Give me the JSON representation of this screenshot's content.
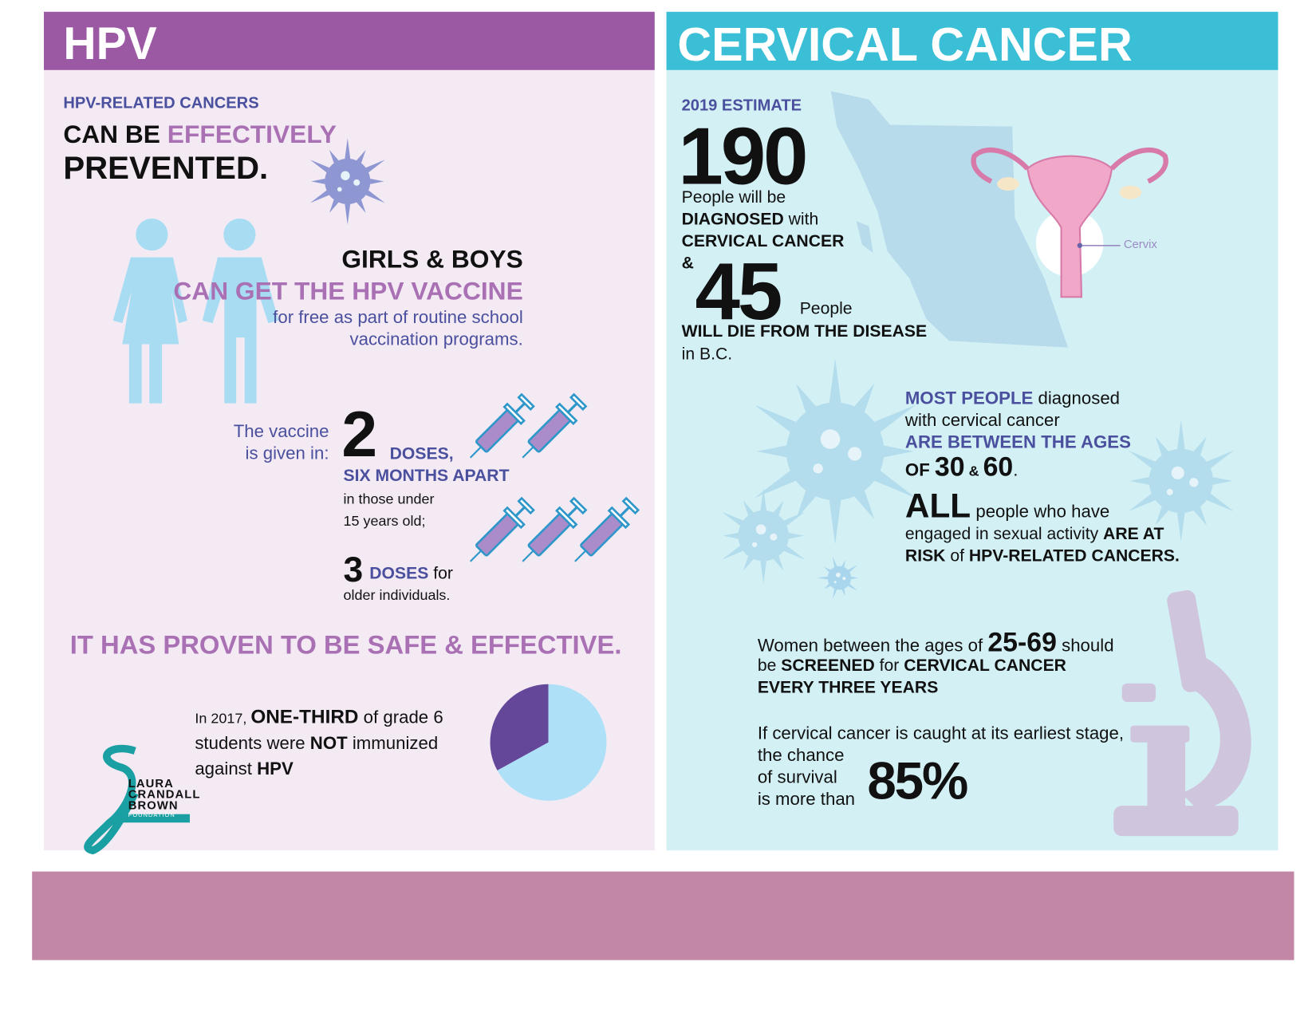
{
  "hpv": {
    "header": "HPV",
    "kicker": "HPV-RELATED CANCERS",
    "headline": [
      "CAN BE ",
      "EFFECTIVELY",
      "PREVENTED."
    ],
    "vaccine": [
      "GIRLS & BOYS",
      "CAN GET THE HPV VACCINE",
      "for free as part of routine school",
      "vaccination programs."
    ],
    "doses": {
      "intro": [
        "The vaccine",
        "is given in:"
      ],
      "two": {
        "count": "2",
        "unit": " DOSES,",
        "interval": "SIX MONTHS APART",
        "who": [
          "in those under",
          "15 years old;"
        ]
      },
      "three": {
        "count": "3",
        "unit": "DOSES",
        "for": " for",
        "who": "older individuals."
      }
    },
    "safe": "IT HAS PROVEN TO BE SAFE & EFFECTIVE.",
    "immunization": [
      "In 2017, ",
      "ONE-THIRD",
      " of grade 6",
      "students were ",
      "NOT",
      " immunized",
      "against ",
      "HPV"
    ],
    "pie": {
      "values": [
        33,
        67
      ],
      "colors": [
        "#65479a",
        "#aee0f8"
      ]
    },
    "logo": [
      "LAURA",
      "CRANDALL",
      "BROWN",
      "FOUNDATION"
    ]
  },
  "cervical": {
    "header": "CERVICAL CANCER",
    "estimate": {
      "label": "2019 ESTIMATE",
      "diagnosed": "190",
      "deaths": "45",
      "text": [
        "People will be",
        "DIAGNOSED",
        " with",
        "CERVICAL CANCER",
        "&",
        "People",
        "WILL DIE FROM THE DISEASE",
        "in B.C."
      ]
    },
    "cervix_label": "Cervix",
    "ages": [
      "MOST PEOPLE",
      " diagnosed",
      "with cervical cancer",
      "ARE BETWEEN THE AGES",
      "OF ",
      "30",
      " & ",
      "60",
      "."
    ],
    "risk": [
      "ALL",
      " people who have",
      "engaged in sexual activity ",
      "ARE AT",
      "RISK",
      " of ",
      "HPV-RELATED CANCERS."
    ],
    "screening": [
      "Women between the ages of ",
      "25-69",
      " should",
      "be ",
      "SCREENED",
      " for ",
      "CERVICAL CANCER",
      "EVERY THREE YEARS"
    ],
    "survival": [
      "If cervical cancer is caught at its earliest stage,",
      "the chance",
      "of survival",
      "is more than",
      "85%"
    ]
  }
}
